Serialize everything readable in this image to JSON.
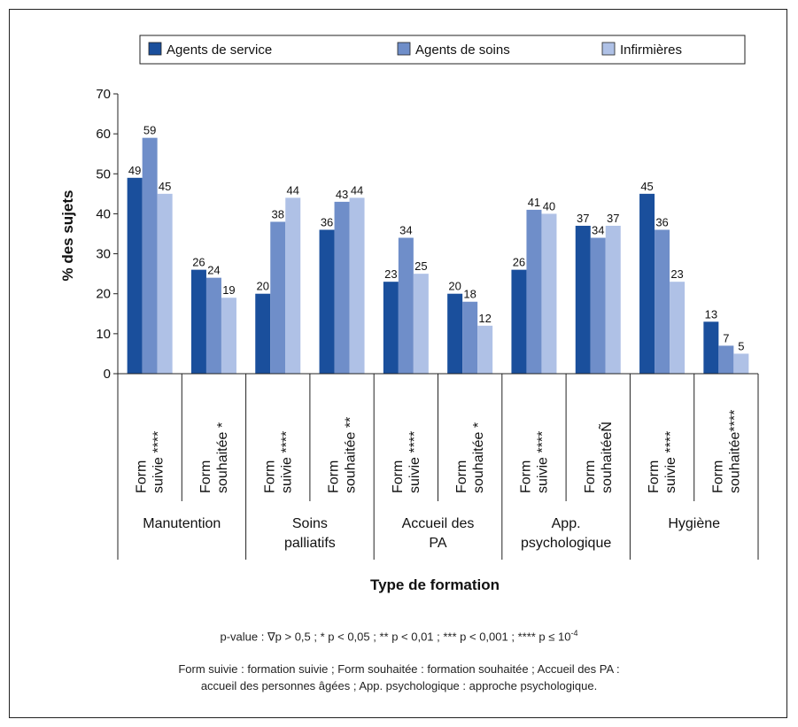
{
  "chart_data": {
    "type": "bar",
    "xlabel": "Type de formation",
    "ylabel": "% des sujets",
    "ylim": [
      0,
      70
    ],
    "yticks": [
      0,
      10,
      20,
      30,
      40,
      50,
      60,
      70
    ],
    "grid": false,
    "legend_position": "top",
    "categories": [
      [
        "Form",
        "suivie ****"
      ],
      [
        "Form",
        "souhaitée *"
      ],
      [
        "Form",
        "suivie ****"
      ],
      [
        "Form",
        "souhaitée **"
      ],
      [
        "Form",
        "suivie ****"
      ],
      [
        "Form",
        "souhaitée *"
      ],
      [
        "Form",
        "suivie ****"
      ],
      [
        "Form",
        "souhaitéeÑ"
      ],
      [
        "Form",
        "suivie ****"
      ],
      [
        "Form",
        "souhaitée****"
      ]
    ],
    "groups": [
      [
        "Manutention"
      ],
      [
        "Soins",
        "palliatifs"
      ],
      [
        "Accueil des",
        "PA"
      ],
      [
        "App.",
        "psychologique"
      ],
      [
        "Hygiène"
      ]
    ],
    "series": [
      {
        "name": "Agents de service",
        "color": "#1a4f9c",
        "values": [
          49,
          26,
          20,
          36,
          23,
          20,
          26,
          37,
          45,
          13
        ]
      },
      {
        "name": "Agents de soins",
        "color": "#6f8ec9",
        "values": [
          59,
          24,
          38,
          43,
          34,
          18,
          41,
          34,
          36,
          7
        ]
      },
      {
        "name": "Infirmières",
        "color": "#afc1e6",
        "values": [
          45,
          19,
          44,
          44,
          25,
          12,
          40,
          37,
          23,
          5
        ]
      }
    ]
  },
  "notes": {
    "pvalue": "p-value : ∇p > 0,5 ; * p < 0,05 ; ** p < 0,01 ; *** p < 0,001 ; **** p ≤ 10",
    "pvalue_exp": "-4",
    "abbrev_line1": "Form suivie : formation suivie ; Form souhaitée : formation souhaitée ; Accueil des PA :",
    "abbrev_line2": "accueil des personnes âgées ; App. psychologique : approche psychologique."
  }
}
